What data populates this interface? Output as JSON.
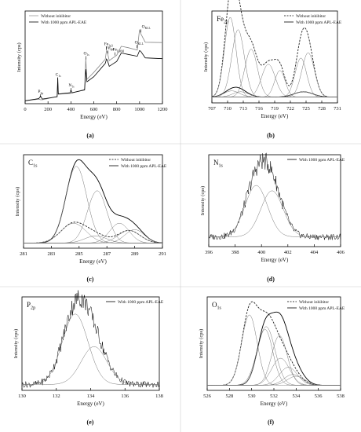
{
  "figure": {
    "panel_labels": [
      "(a)",
      "(b)",
      "(c)",
      "(d)",
      "(e)",
      "(f)"
    ]
  },
  "chart_data": [
    {
      "type": "line",
      "panel": "(a)",
      "xlabel": "Energy (eV)",
      "ylabel": "Intensity (cps)",
      "xlim": [
        0,
        1200
      ],
      "xticks": [
        0,
        200,
        400,
        600,
        800,
        1000,
        1200
      ],
      "legend_position": "top-left",
      "series": [
        {
          "name": "Without inhibitor",
          "style": "solid-gray",
          "x": [
            0,
            120,
            135,
            150,
            280,
            285,
            290,
            400,
            520,
            530,
            540,
            600,
            700,
            711,
            720,
            735,
            800,
            840,
            900,
            980,
            1000,
            1010,
            1050,
            1200
          ],
          "y": [
            0.05,
            0.06,
            0.07,
            0.06,
            0.1,
            0.26,
            0.12,
            0.14,
            0.18,
            0.52,
            0.28,
            0.36,
            0.52,
            0.6,
            0.58,
            0.5,
            0.55,
            0.66,
            0.64,
            0.62,
            0.84,
            0.8,
            0.7,
            0.7
          ]
        },
        {
          "name": "With 1000 ppm APL-EAE",
          "style": "solid-black",
          "x": [
            0,
            120,
            135,
            150,
            280,
            285,
            290,
            395,
            400,
            410,
            520,
            530,
            540,
            600,
            700,
            711,
            720,
            735,
            800,
            840,
            900,
            980,
            1000,
            1010,
            1050,
            1200
          ],
          "y": [
            0.05,
            0.07,
            0.1,
            0.07,
            0.1,
            0.3,
            0.12,
            0.14,
            0.17,
            0.14,
            0.18,
            0.4,
            0.26,
            0.32,
            0.46,
            0.52,
            0.5,
            0.44,
            0.48,
            0.58,
            0.56,
            0.54,
            0.62,
            0.6,
            0.52,
            0.52
          ]
        }
      ],
      "annotations": [
        {
          "text": "P",
          "sub": "2p",
          "x": 133
        },
        {
          "text": "C",
          "sub": "1s",
          "x": 285
        },
        {
          "text": "N",
          "sub": "1s",
          "x": 400
        },
        {
          "text": "O",
          "sub": "1s",
          "x": 531
        },
        {
          "text": "Fe",
          "sub": "2p3",
          "x": 711
        },
        {
          "text": "Fe",
          "sub": "2p1",
          "x": 724
        },
        {
          "text": "Fe",
          "sub": "LMM",
          "x": 785
        },
        {
          "text": "O",
          "sub": "KLL",
          "x": 978
        },
        {
          "text": "O",
          "sub": "KLL",
          "x": 1012
        }
      ]
    },
    {
      "type": "line",
      "panel": "(b)",
      "title": "Fe",
      "title_sub": "2p",
      "xlabel": "Energy (eV)",
      "ylabel": "Intensity (cps)",
      "xlim": [
        707,
        731
      ],
      "xticks": [
        707,
        710,
        713,
        716,
        719,
        722,
        725,
        728,
        731
      ],
      "legend_position": "top-right",
      "series": [
        {
          "name": "Without inhibitor",
          "style": "dashed",
          "components": [
            {
              "center": 710.5,
              "height": 0.9,
              "width": 1.1
            },
            {
              "center": 712.0,
              "height": 0.76,
              "width": 1.2
            },
            {
              "center": 714.5,
              "height": 0.54,
              "width": 1.2
            },
            {
              "center": 717.8,
              "height": 0.37,
              "width": 1.3
            },
            {
              "center": 720.0,
              "height": 0.3,
              "width": 1.0
            },
            {
              "center": 724.0,
              "height": 0.44,
              "width": 1.1
            },
            {
              "center": 725.4,
              "height": 0.5,
              "width": 1.2
            }
          ]
        },
        {
          "name": "With 1000 ppm APL-EAE",
          "style": "solid",
          "components": [
            {
              "center": 710.8,
              "height": 0.07,
              "width": 1.5
            },
            {
              "center": 712.5,
              "height": 0.06,
              "width": 1.5
            },
            {
              "center": 724.5,
              "height": 0.06,
              "width": 1.8
            }
          ]
        }
      ]
    },
    {
      "type": "line",
      "panel": "(c)",
      "title": "C",
      "title_sub": "1s",
      "xlabel": "Energy (eV)",
      "ylabel": "Intensity (cps)",
      "xlim": [
        281,
        291
      ],
      "xticks": [
        281,
        283,
        285,
        287,
        289,
        291
      ],
      "legend_position": "top-right",
      "series": [
        {
          "name": "Without inhibitor",
          "style": "dashed",
          "components": [
            {
              "center": 284.6,
              "height": 0.22,
              "width": 0.9
            },
            {
              "center": 286.2,
              "height": 0.08,
              "width": 0.8
            },
            {
              "center": 288.6,
              "height": 0.14,
              "width": 0.8
            }
          ]
        },
        {
          "name": "With 1000 ppm APL-EAE",
          "style": "solid",
          "components": [
            {
              "center": 284.8,
              "height": 0.85,
              "width": 0.75
            },
            {
              "center": 286.3,
              "height": 0.58,
              "width": 0.7
            },
            {
              "center": 287.9,
              "height": 0.22,
              "width": 0.7
            },
            {
              "center": 289.0,
              "height": 0.15,
              "width": 0.7
            }
          ]
        }
      ]
    },
    {
      "type": "line",
      "panel": "(d)",
      "title": "N",
      "title_sub": "1s",
      "xlabel": "Energy (eV)",
      "ylabel": "Intensity (cps)",
      "xlim": [
        396,
        406
      ],
      "xticks": [
        396,
        398,
        400,
        402,
        404,
        406
      ],
      "legend_position": "top-right",
      "series": [
        {
          "name": "With 1000 ppm APL-EAE",
          "style": "noisy",
          "components": [
            {
              "center": 399.6,
              "height": 0.58,
              "width": 0.85
            },
            {
              "center": 400.8,
              "height": 0.52,
              "width": 0.85
            }
          ]
        }
      ]
    },
    {
      "type": "line",
      "panel": "(e)",
      "title": "P",
      "title_sub": "2p",
      "xlabel": "Energy (eV)",
      "ylabel": "Intensity (cps)",
      "xlim": [
        130,
        138
      ],
      "xticks": [
        130,
        132,
        134,
        136,
        138
      ],
      "legend_position": "top-right",
      "series": [
        {
          "name": "With 1000 ppm APL-EAE",
          "style": "noisy",
          "components": [
            {
              "center": 133.1,
              "height": 0.78,
              "width": 0.75
            },
            {
              "center": 134.2,
              "height": 0.42,
              "width": 0.75
            }
          ]
        }
      ]
    },
    {
      "type": "line",
      "panel": "(f)",
      "title": "O",
      "title_sub": "1s",
      "xlabel": "Energy (eV)",
      "ylabel": "Intensity (cps)",
      "xlim": [
        526,
        538
      ],
      "xticks": [
        526,
        528,
        530,
        532,
        534,
        536,
        538
      ],
      "legend_position": "top-right",
      "series": [
        {
          "name": "Without inhibitor",
          "style": "dashed",
          "components": [
            {
              "center": 529.8,
              "height": 0.78,
              "width": 0.7
            },
            {
              "center": 531.3,
              "height": 0.65,
              "width": 0.8
            },
            {
              "center": 532.6,
              "height": 0.3,
              "width": 0.8
            },
            {
              "center": 533.7,
              "height": 0.12,
              "width": 0.8
            }
          ]
        },
        {
          "name": "With 1000 ppm APL-EAE",
          "style": "solid",
          "components": [
            {
              "center": 531.2,
              "height": 0.62,
              "width": 0.7
            },
            {
              "center": 532.5,
              "height": 0.55,
              "width": 0.7
            },
            {
              "center": 533.3,
              "height": 0.2,
              "width": 0.8
            },
            {
              "center": 534.0,
              "height": 0.1,
              "width": 0.8
            }
          ]
        }
      ]
    }
  ]
}
